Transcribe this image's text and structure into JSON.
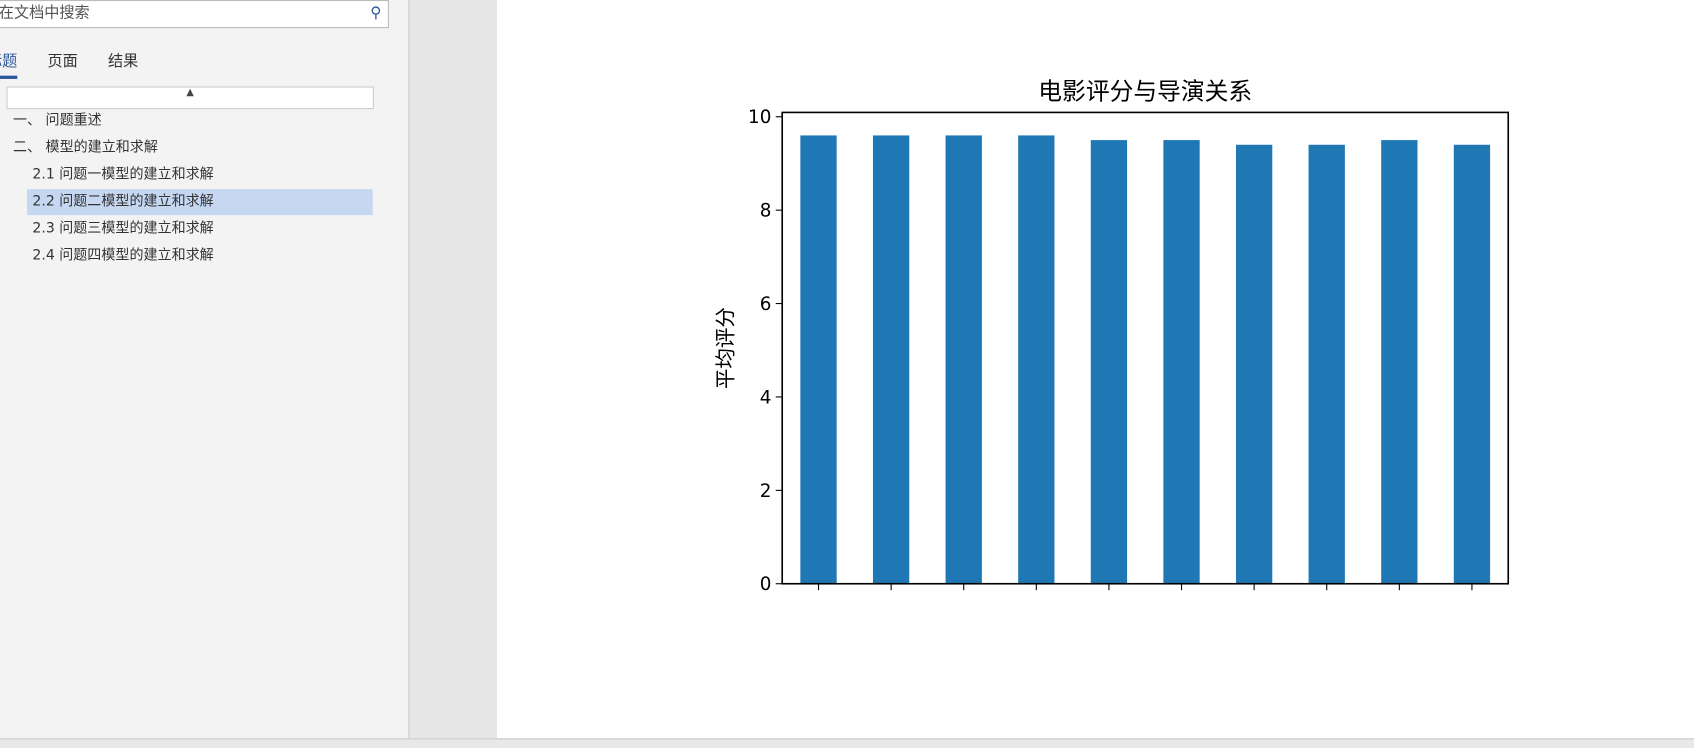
{
  "nav": {
    "search_placeholder": "在文档中搜索",
    "tabs": [
      "标题",
      "页面",
      "结果"
    ],
    "headings": [
      "一、 问题重述",
      "二、 模型的建立和求解",
      "2.1 问题一模型的建立和求解",
      "2.2 问题二模型的建立和求解",
      "2.3 问题三模型的建立和求解",
      "2.4 问题四模型的建立和求解"
    ]
  },
  "chart_data": {
    "type": "bar",
    "title": "电影评分与导演关系",
    "y_label": "平均评分",
    "categories": [
      null,
      null,
      null,
      null,
      null,
      null,
      null,
      null,
      null,
      null
    ],
    "values": [
      9.6,
      9.6,
      9.6,
      9.6,
      9.5,
      9.5,
      9.4,
      9.4,
      9.5,
      9.4
    ],
    "color": "#1f77b4",
    "ylim": [
      0,
      10
    ],
    "yticks": [
      0,
      2,
      4,
      6,
      8,
      10
    ]
  }
}
